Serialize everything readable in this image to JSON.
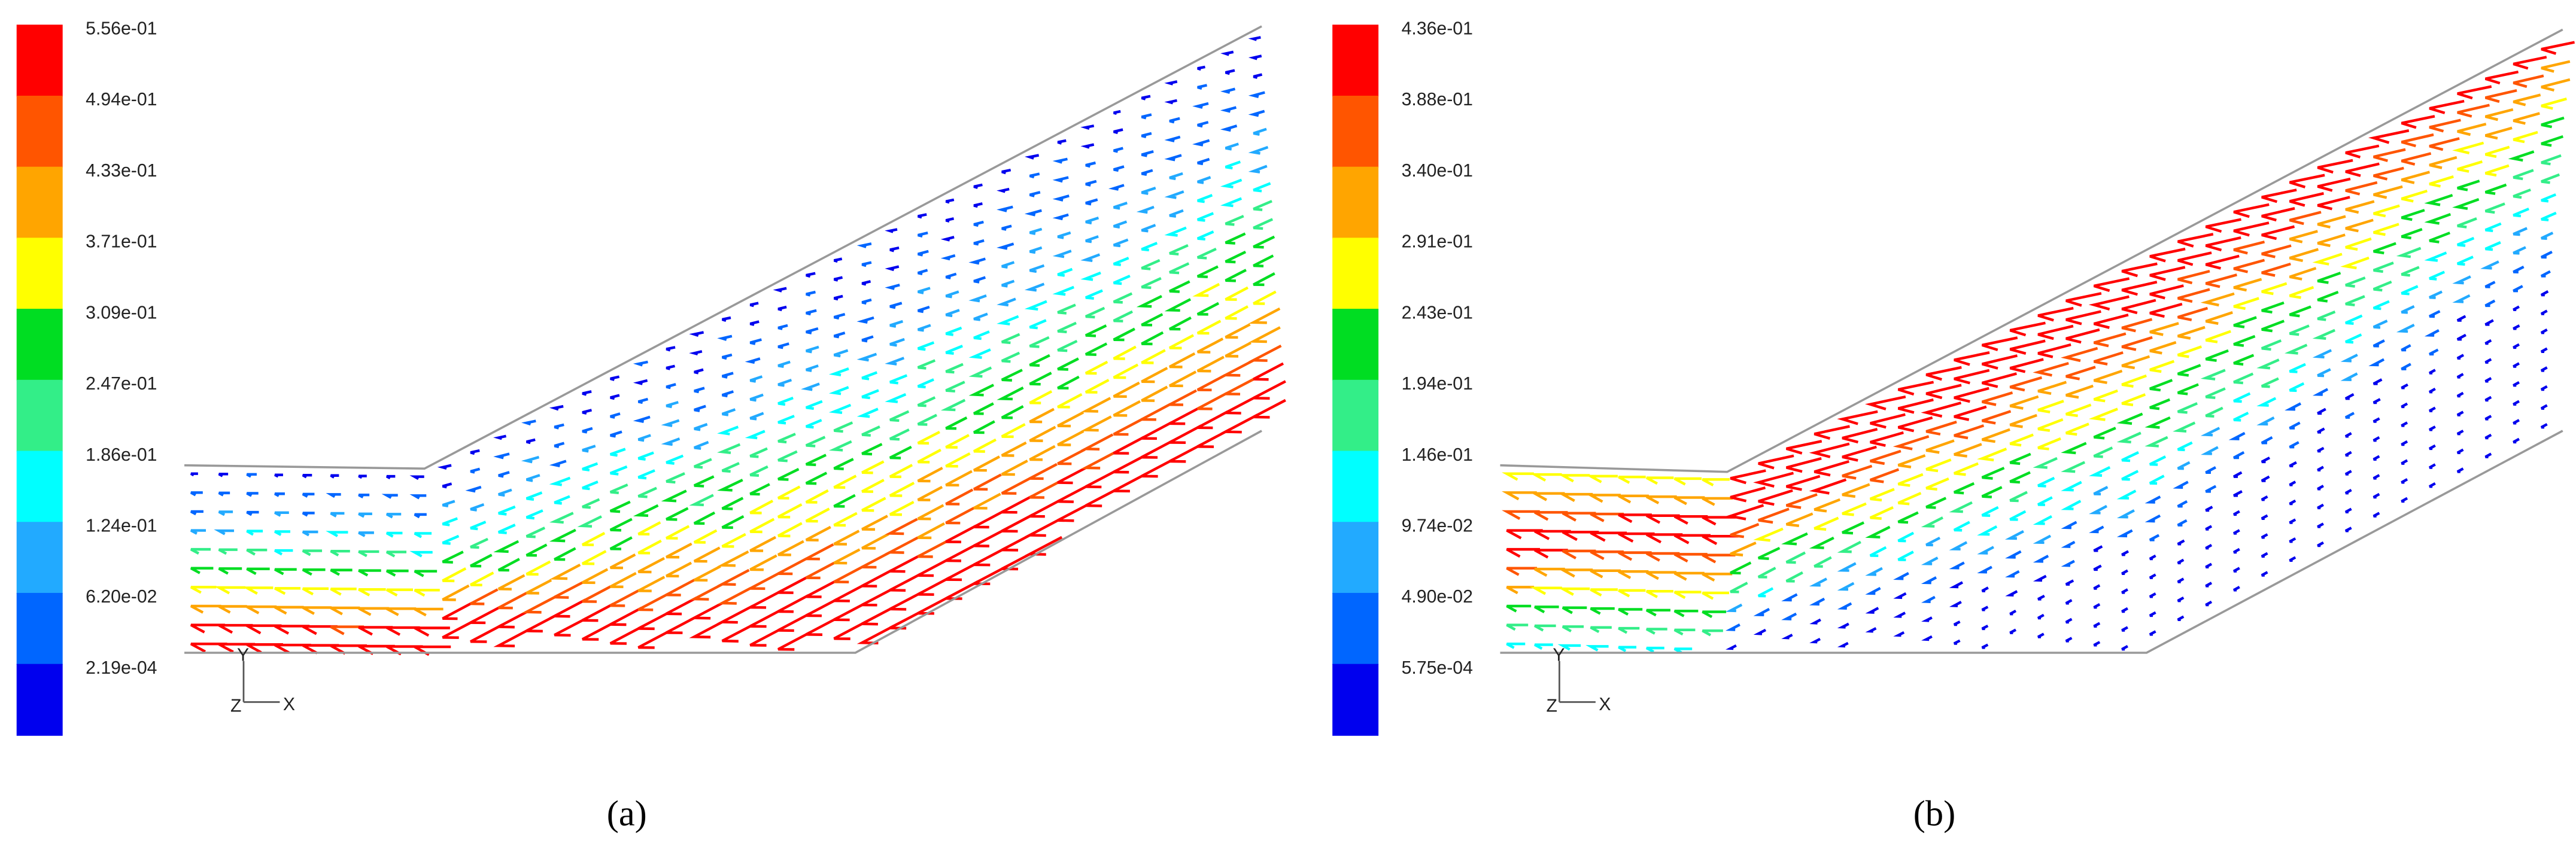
{
  "panels": [
    {
      "caption": "(a)",
      "colorbar": {
        "labels": [
          "5.56e-01",
          "4.94e-01",
          "4.33e-01",
          "3.71e-01",
          "3.09e-01",
          "2.47e-01",
          "1.86e-01",
          "1.24e-01",
          "6.20e-02",
          "2.19e-04"
        ]
      },
      "axes": {
        "y": "Y",
        "z": "Z",
        "x": "X"
      }
    },
    {
      "caption": "(b)",
      "colorbar": {
        "labels": [
          "4.36e-01",
          "3.88e-01",
          "3.40e-01",
          "2.91e-01",
          "2.43e-01",
          "1.94e-01",
          "1.46e-01",
          "9.74e-02",
          "4.90e-02",
          "5.75e-04"
        ]
      },
      "axes": {
        "y": "Y",
        "z": "Z",
        "x": "X"
      }
    }
  ]
}
